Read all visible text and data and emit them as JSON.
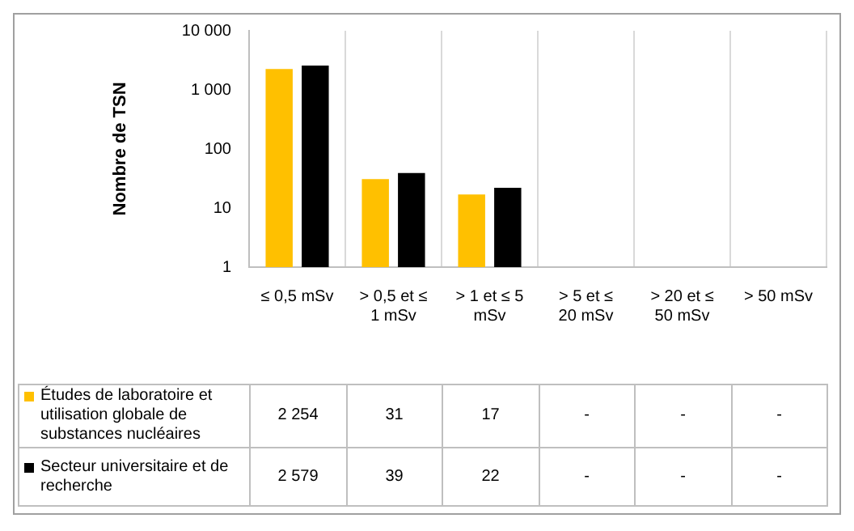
{
  "chart_data": {
    "type": "bar",
    "ylabel": "Nombre de TSN",
    "log": true,
    "ylim": [
      1,
      10000
    ],
    "yticks": [
      1,
      10,
      100,
      {
        "value": 1000,
        "label": "1 000"
      },
      {
        "value": 10000,
        "label": "10 000"
      }
    ],
    "grid": "x",
    "legend": "bottom left",
    "categories": [
      "≤ 0,5 mSv",
      "> 0,5 et ≤ 1 mSv",
      "> 1 et ≤ 5 mSv",
      "> 5 et ≤ 20 mSv",
      "> 20 et ≤ 50 mSv",
      "> 50 mSv"
    ],
    "series": [
      {
        "name": "Études de laboratoire et utilisation globale de substances nucléaires",
        "color": "#ffc000",
        "values": [
          2254,
          31,
          17,
          null,
          null,
          null
        ],
        "value_labels": [
          "2 254",
          "31",
          "17",
          "-",
          "-",
          "-"
        ]
      },
      {
        "name": "Secteur universitaire et de recherche",
        "color": "#000000",
        "values": [
          2579,
          39,
          22,
          null,
          null,
          null
        ],
        "value_labels": [
          "2 579",
          "39",
          "22",
          "-",
          "-",
          "-"
        ]
      }
    ]
  }
}
